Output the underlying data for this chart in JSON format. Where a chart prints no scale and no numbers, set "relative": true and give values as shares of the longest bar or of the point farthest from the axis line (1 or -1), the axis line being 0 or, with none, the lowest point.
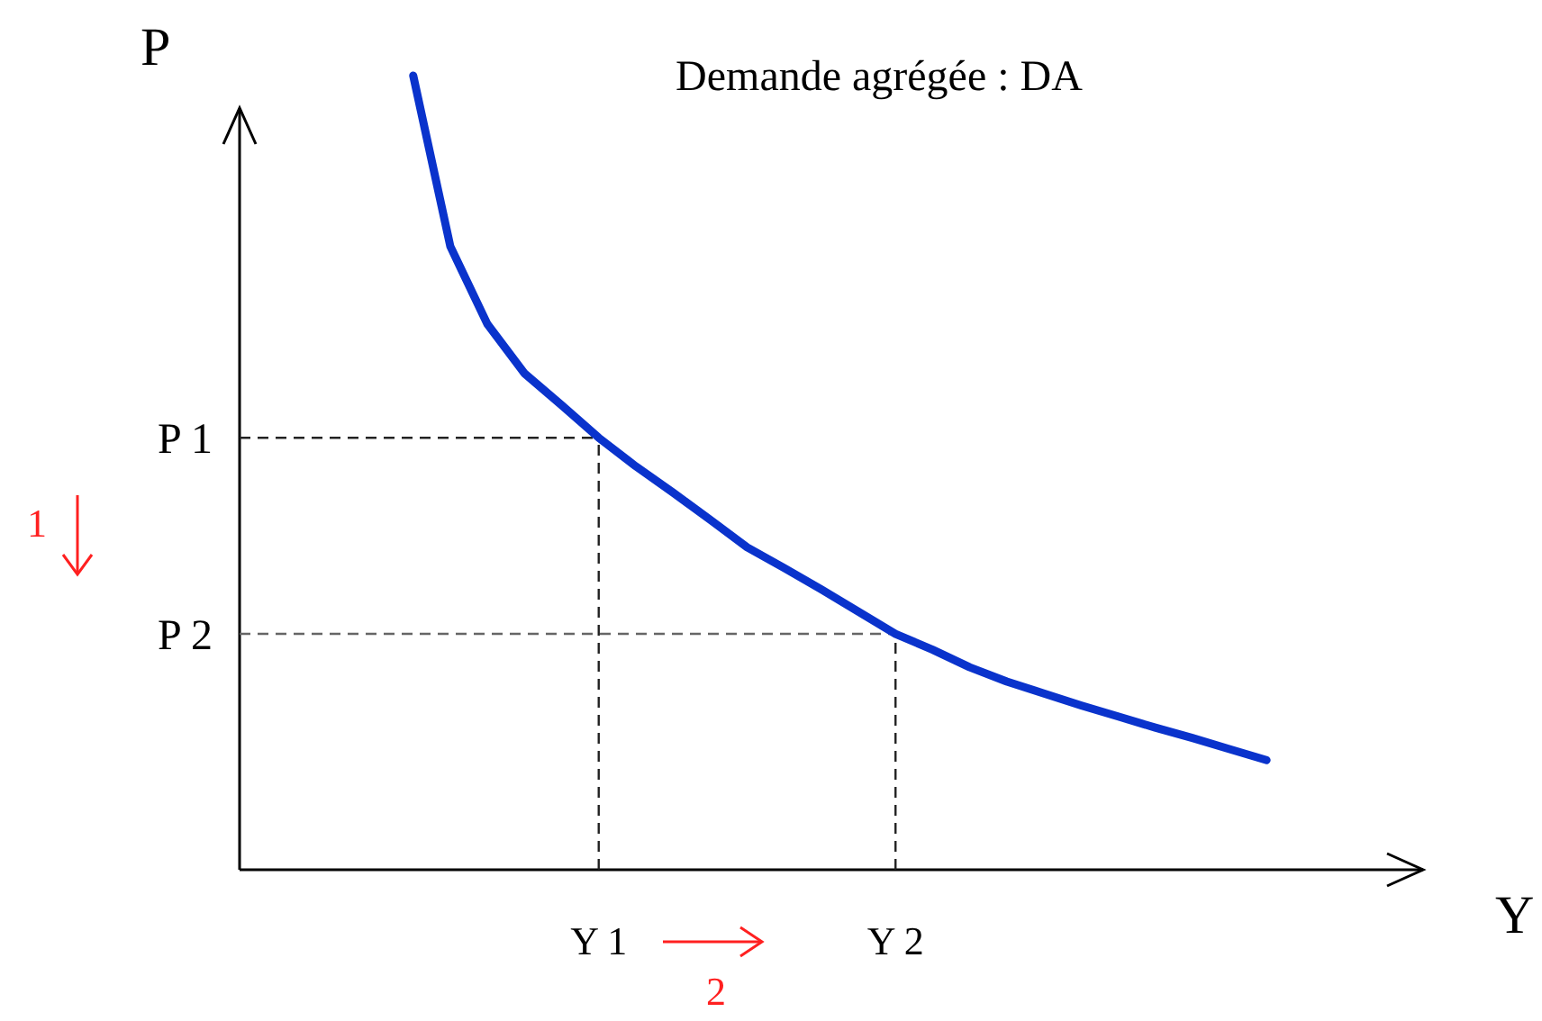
{
  "chart_data": {
    "type": "line",
    "relative": true,
    "xlabel": "Y",
    "ylabel": "P",
    "marker": "none",
    "categories": [
      null,
      null,
      null,
      null,
      null,
      "Y 1",
      null,
      null,
      null,
      null,
      null,
      null,
      null,
      "Y 2",
      null,
      null,
      null,
      null,
      null,
      null,
      null,
      null,
      null,
      null
    ],
    "title": "Demande agrégée : DA",
    "series": [
      {
        "color": "#0a33cc",
        "values": [
          1,
          0.785,
          0.687,
          0.625,
          0.585,
          0.544,
          0.508,
          0.475,
          0.441,
          0.406,
          0.38,
          0.353,
          0.325,
          0.297,
          0.277,
          0.255,
          0.237,
          0.222,
          0.207,
          0.193,
          0.179,
          0.166,
          0.152,
          0.138
        ]
      }
    ],
    "ref_lines": [
      {
        "axis": "y",
        "value": 0.544,
        "label": "P 1",
        "color": "#222222",
        "line_style": "dashed"
      },
      {
        "axis": "y",
        "value": 0.297,
        "label": "P 2",
        "color": "#666666",
        "line_style": "dashed"
      },
      {
        "axis": "x",
        "value": "Y 1",
        "color": "#222222",
        "line_style": "dashed"
      },
      {
        "axis": "x",
        "value": "Y 2",
        "color": "#222222",
        "line_style": "dashed"
      }
    ],
    "annotations": [
      "1",
      "2"
    ]
  }
}
